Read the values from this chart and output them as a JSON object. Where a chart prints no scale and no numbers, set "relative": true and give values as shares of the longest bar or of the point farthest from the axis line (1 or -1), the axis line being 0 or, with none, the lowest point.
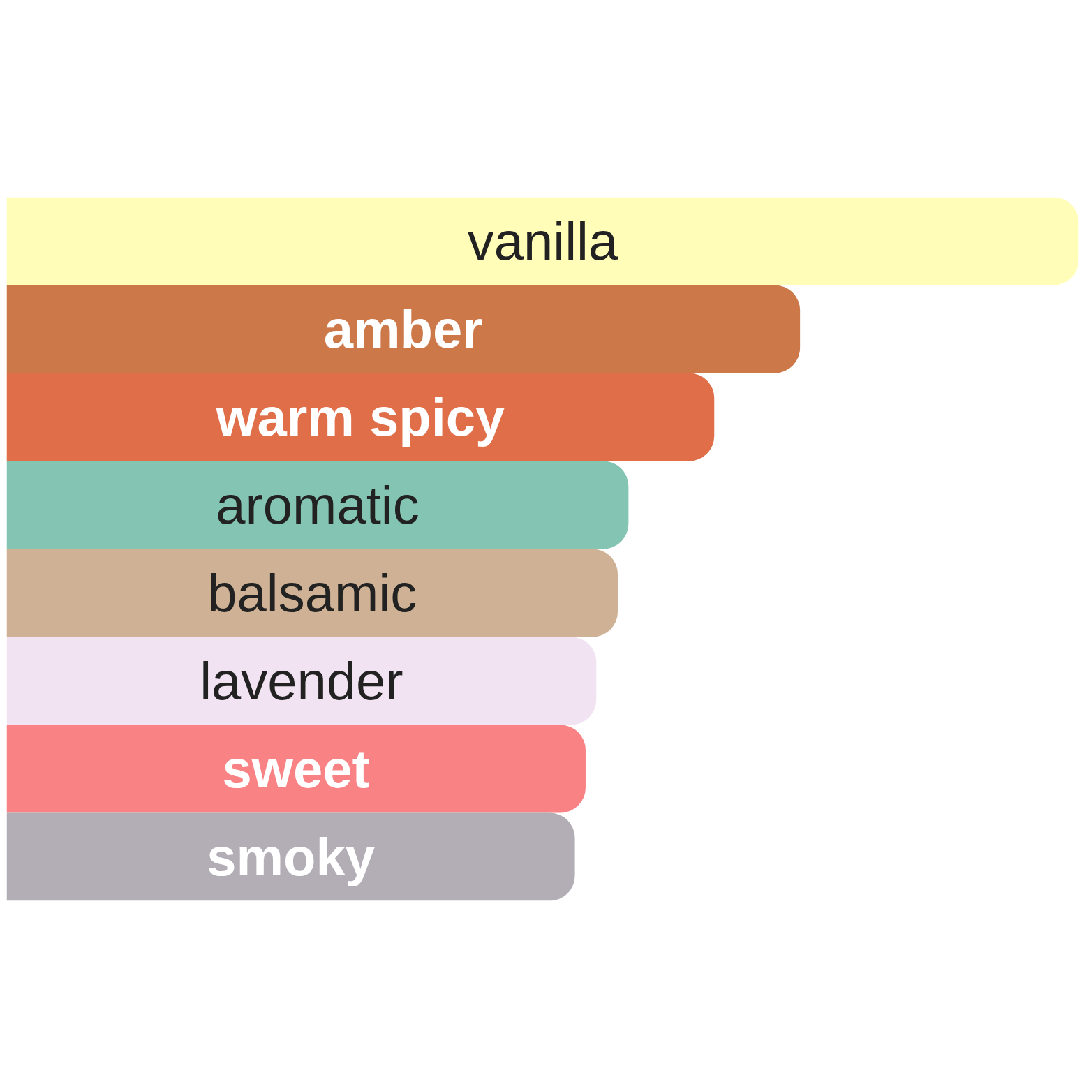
{
  "chart_data": {
    "type": "bar",
    "orientation": "horizontal",
    "relative": true,
    "categories": [
      "vanilla",
      "amber",
      "warm spicy",
      "aromatic",
      "balsamic",
      "lavender",
      "sweet",
      "smoky"
    ],
    "values": [
      1,
      0.74,
      0.66,
      0.58,
      0.57,
      0.55,
      0.54,
      0.53
    ],
    "colors": [
      "#fffdb8",
      "#cc7848",
      "#e06e48",
      "#84c4b2",
      "#cfb295",
      "#f1e3f1",
      "#f88284",
      "#b3aeb6"
    ]
  }
}
